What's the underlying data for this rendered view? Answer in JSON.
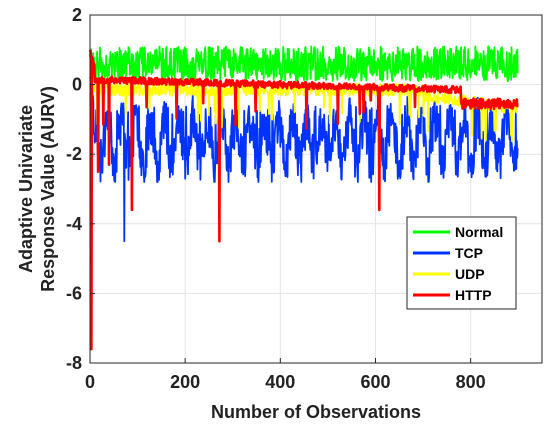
{
  "chart_data": {
    "type": "line",
    "title": "",
    "xlabel": "Number of Observations",
    "ylabel_lines": [
      "Adaptive Univariate",
      "Response Value (AURV)"
    ],
    "xlim": [
      0,
      950
    ],
    "ylim": [
      -8,
      2
    ],
    "xticks": [
      0,
      200,
      400,
      600,
      800
    ],
    "yticks": [
      2,
      0,
      -2,
      -4,
      -6,
      -8
    ],
    "grid": true,
    "legend_position": "bottom-right",
    "series": [
      {
        "name": "Normal",
        "color": "#00ff00",
        "pattern": "fluctuates between about 0 and 1.1 across all observations"
      },
      {
        "name": "TCP",
        "color": "#0033ff",
        "pattern": "fluctuates between about -2.8 and -0.5; dips to about -4.5 near x=72",
        "min_points": [
          {
            "x": 72,
            "y": -4.5
          }
        ]
      },
      {
        "name": "UDP",
        "color": "#ffff00",
        "pattern": "mostly between about -0.7 and 0.3, descending toward about -1.0 after x=700"
      },
      {
        "name": "HTTP",
        "color": "#ff0000",
        "pattern": "starts near 1.0, stays around 0.2 to -0.3, drops to about -0.7 after x=780; sharp spikes",
        "spikes": [
          {
            "x": 3,
            "y": -7.6
          },
          {
            "x": 17,
            "y": -2.5
          },
          {
            "x": 40,
            "y": -2.3
          },
          {
            "x": 88,
            "y": -3.6
          },
          {
            "x": 272,
            "y": -4.5
          },
          {
            "x": 608,
            "y": -3.6
          }
        ]
      }
    ]
  }
}
